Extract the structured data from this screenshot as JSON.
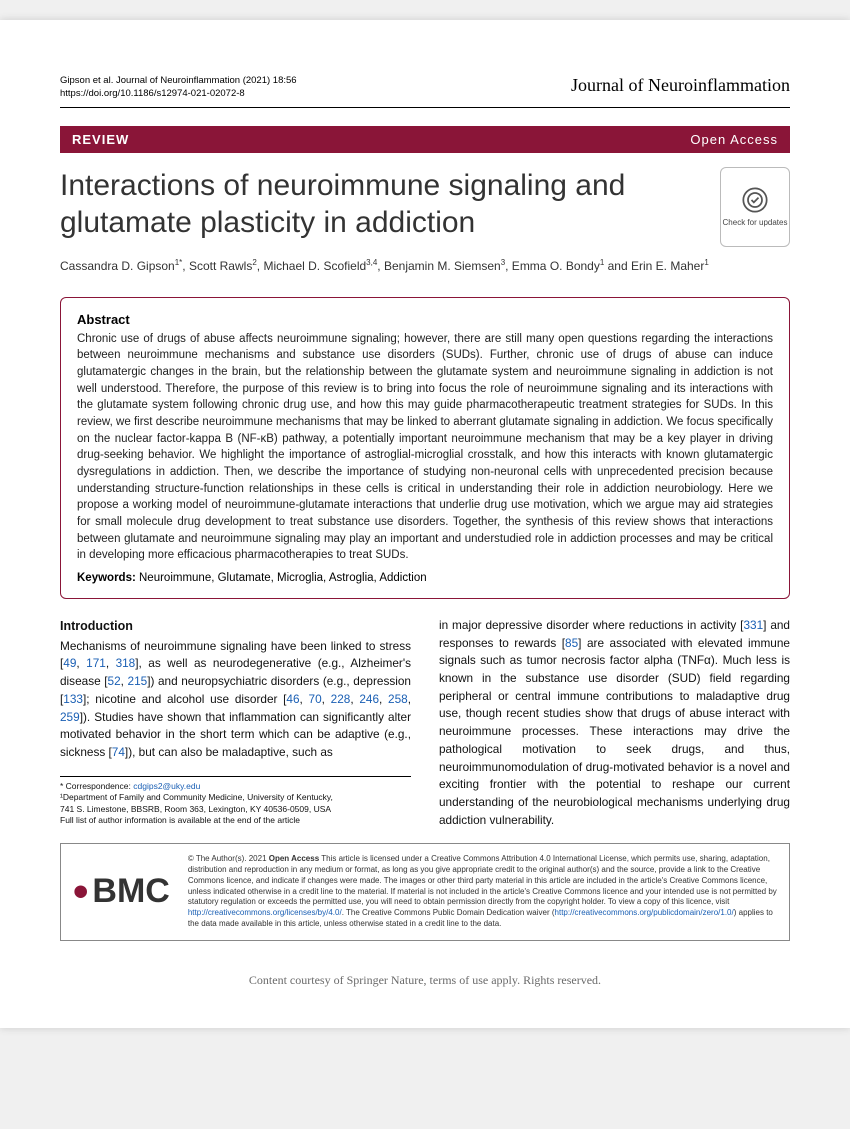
{
  "header": {
    "citation_line1": "Gipson et al. Journal of Neuroinflammation        (2021) 18:56",
    "citation_line2": "https://doi.org/10.1186/s12974-021-02072-8",
    "journal": "Journal of Neuroinflammation"
  },
  "review_bar": {
    "label": "REVIEW",
    "access": "Open Access"
  },
  "title": "Interactions of neuroimmune signaling and glutamate plasticity in addiction",
  "check_badge": "Check for updates",
  "authors_html": "Cassandra D. Gipson<sup>1*</sup>, Scott Rawls<sup>2</sup>, Michael D. Scofield<sup>3,4</sup>, Benjamin M. Siemsen<sup>3</sup>, Emma O. Bondy<sup>1</sup> and Erin E. Maher<sup>1</sup>",
  "abstract": {
    "title": "Abstract",
    "body": "Chronic use of drugs of abuse affects neuroimmune signaling; however, there are still many open questions regarding the interactions between neuroimmune mechanisms and substance use disorders (SUDs). Further, chronic use of drugs of abuse can induce glutamatergic changes in the brain, but the relationship between the glutamate system and neuroimmune signaling in addiction is not well understood. Therefore, the purpose of this review is to bring into focus the role of neuroimmune signaling and its interactions with the glutamate system following chronic drug use, and how this may guide pharmacotherapeutic treatment strategies for SUDs. In this review, we first describe neuroimmune mechanisms that may be linked to aberrant glutamate signaling in addiction. We focus specifically on the nuclear factor-kappa B (NF-κB) pathway, a potentially important neuroimmune mechanism that may be a key player in driving drug-seeking behavior. We highlight the importance of astroglial-microglial crosstalk, and how this interacts with known glutamatergic dysregulations in addiction. Then, we describe the importance of studying non-neuronal cells with unprecedented precision because understanding structure-function relationships in these cells is critical in understanding their role in addiction neurobiology. Here we propose a working model of neuroimmune-glutamate interactions that underlie drug use motivation, which we argue may aid strategies for small molecule drug development to treat substance use disorders. Together, the synthesis of this review shows that interactions between glutamate and neuroimmune signaling may play an important and understudied role in addiction processes and may be critical in developing more efficacious pharmacotherapies to treat SUDs.",
    "keywords_label": "Keywords:",
    "keywords": " Neuroimmune, Glutamate, Microglia, Astroglia, Addiction"
  },
  "body": {
    "intro_heading": "Introduction",
    "col1_html": "Mechanisms of neuroimmune signaling have been linked to stress [<span class='ref'>49</span>, <span class='ref'>171</span>, <span class='ref'>318</span>], as well as neurodegenerative (e.g., Alzheimer's disease [<span class='ref'>52</span>, <span class='ref'>215</span>]) and neuropsychiatric disorders (e.g., depression [<span class='ref'>133</span>]; nicotine and alcohol use disorder [<span class='ref'>46</span>, <span class='ref'>70</span>, <span class='ref'>228</span>, <span class='ref'>246</span>, <span class='ref'>258</span>, <span class='ref'>259</span>]). Studies have shown that inflammation can significantly alter motivated behavior in the short term which can be adaptive (e.g., sickness [<span class='ref'>74</span>]), but can also be maladaptive, such as",
    "col2_html": "in major depressive disorder where reductions in activity [<span class='ref'>331</span>] and responses to rewards [<span class='ref'>85</span>] are associated with elevated immune signals such as tumor necrosis factor alpha (TNFα). Much less is known in the substance use disorder (SUD) field regarding peripheral or central immune contributions to maladaptive drug use, though recent studies show that drugs of abuse interact with neuroimmune processes. These interactions may drive the pathological motivation to seek drugs, and thus, neuroimmunomodulation of drug-motivated behavior is a novel and exciting frontier with the potential to reshape our current understanding of the neurobiological mechanisms underlying drug addiction vulnerability."
  },
  "correspondence": {
    "line1_label": "* Correspondence: ",
    "email": "cdgips2@uky.edu",
    "line2": "¹Department of Family and Community Medicine, University of Kentucky,",
    "line3": "741 S. Limestone, BBSRB, Room 363, Lexington, KY 40536-0509, USA",
    "line4": "Full list of author information is available at the end of the article"
  },
  "license": {
    "logo_text": "BMC",
    "text_html": "© The Author(s). 2021 <b>Open Access</b> This article is licensed under a Creative Commons Attribution 4.0 International License, which permits use, sharing, adaptation, distribution and reproduction in any medium or format, as long as you give appropriate credit to the original author(s) and the source, provide a link to the Creative Commons licence, and indicate if changes were made. The images or other third party material in this article are included in the article's Creative Commons licence, unless indicated otherwise in a credit line to the material. If material is not included in the article's Creative Commons licence and your intended use is not permitted by statutory regulation or exceeds the permitted use, you will need to obtain permission directly from the copyright holder. To view a copy of this licence, visit <a>http://creativecommons.org/licenses/by/4.0/</a>. The Creative Commons Public Domain Dedication waiver (<a>http://creativecommons.org/publicdomain/zero/1.0/</a>) applies to the data made available in this article, unless otherwise stated in a credit line to the data."
  },
  "footer": "Content courtesy of Springer Nature, terms of use apply. Rights reserved."
}
